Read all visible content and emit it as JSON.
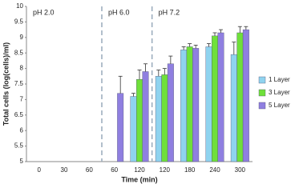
{
  "chart_data": {
    "type": "bar",
    "x_label": "Time (min)",
    "y_label": "Total cells (log(cells)/ml)",
    "annotations": [
      "pH 2.0",
      "pH 6.0",
      "pH 7.2"
    ],
    "categories": [
      "0",
      "30",
      "60",
      "60",
      "120",
      "120",
      "180",
      "240",
      "300"
    ],
    "series": [
      {
        "name": "1 Layer",
        "color": "#8fd3ef",
        "values": [
          null,
          null,
          null,
          null,
          7.1,
          7.75,
          8.6,
          8.7,
          8.45
        ],
        "errors": [
          null,
          null,
          null,
          null,
          0.1,
          0.2,
          0.1,
          0.1,
          0.4
        ]
      },
      {
        "name": "3 Layer",
        "color": "#6fe03a",
        "values": [
          null,
          null,
          null,
          null,
          7.65,
          7.8,
          8.7,
          9.05,
          9.15
        ],
        "errors": [
          null,
          null,
          null,
          null,
          0.3,
          0.2,
          0.1,
          0.1,
          0.2
        ]
      },
      {
        "name": "5 Layer",
        "color": "#8f7fe0",
        "values": [
          null,
          null,
          null,
          7.2,
          7.9,
          8.15,
          8.65,
          9.15,
          9.25
        ],
        "errors": [
          null,
          null,
          null,
          0.55,
          0.25,
          0.25,
          0.1,
          0.1,
          0.1
        ]
      }
    ],
    "ylim": [
      5,
      10
    ],
    "yticks": [
      5,
      5.5,
      6,
      6.5,
      7,
      7.5,
      8,
      8.5,
      9,
      9.5,
      10
    ],
    "legend": "right"
  }
}
